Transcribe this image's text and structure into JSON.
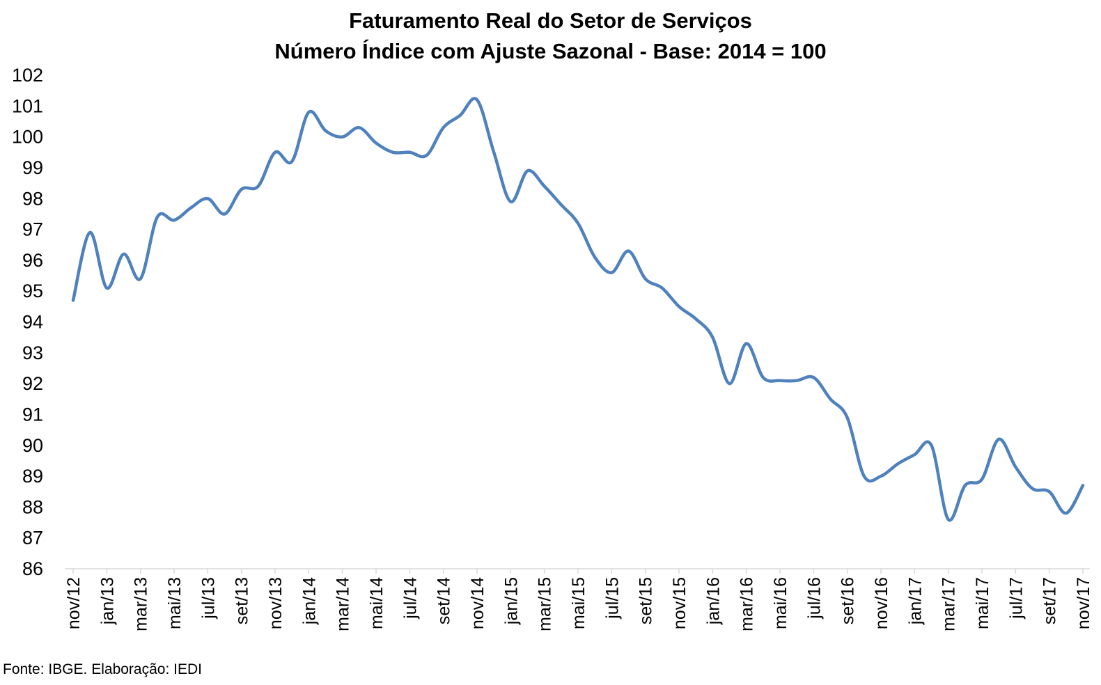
{
  "chart_data": {
    "type": "line",
    "title": "Faturamento Real do Setor de Serviços",
    "subtitle": "Número Índice com Ajuste Sazonal - Base: 2014 = 100",
    "xlabel": "",
    "ylabel": "",
    "ylim": [
      86,
      102
    ],
    "yticks": [
      86,
      87,
      88,
      89,
      90,
      91,
      92,
      93,
      94,
      95,
      96,
      97,
      98,
      99,
      100,
      101,
      102
    ],
    "grid": false,
    "legend": "none",
    "x": [
      "nov/12",
      "dez/12",
      "jan/13",
      "fev/13",
      "mar/13",
      "abr/13",
      "mai/13",
      "jun/13",
      "jul/13",
      "ago/13",
      "set/13",
      "out/13",
      "nov/13",
      "dez/13",
      "jan/14",
      "fev/14",
      "mar/14",
      "abr/14",
      "mai/14",
      "jun/14",
      "jul/14",
      "ago/14",
      "set/14",
      "out/14",
      "nov/14",
      "dez/14",
      "jan/15",
      "fev/15",
      "mar/15",
      "abr/15",
      "mai/15",
      "jun/15",
      "jul/15",
      "ago/15",
      "set/15",
      "out/15",
      "nov/15",
      "dez/15",
      "jan/16",
      "fev/16",
      "mar/16",
      "abr/16",
      "mai/16",
      "jun/16",
      "jul/16",
      "ago/16",
      "set/16",
      "out/16",
      "nov/16",
      "dez/16",
      "jan/17",
      "fev/17",
      "mar/17",
      "abr/17",
      "mai/17",
      "jun/17",
      "jul/17",
      "ago/17",
      "set/17",
      "out/17",
      "nov/17"
    ],
    "x_tick_labels": [
      "nov/12",
      "jan/13",
      "mar/13",
      "mai/13",
      "jul/13",
      "set/13",
      "nov/13",
      "jan/14",
      "mar/14",
      "mai/14",
      "jul/14",
      "set/14",
      "nov/14",
      "jan/15",
      "mar/15",
      "mai/15",
      "jul/15",
      "set/15",
      "nov/15",
      "jan/16",
      "mar/16",
      "mai/16",
      "jul/16",
      "set/16",
      "nov/16",
      "jan/17",
      "mar/17",
      "mai/17",
      "jul/17",
      "set/17",
      "nov/17"
    ],
    "series": [
      {
        "color": "#4F81BD",
        "values": [
          94.7,
          96.9,
          95.1,
          96.2,
          95.4,
          97.4,
          97.3,
          97.7,
          98.0,
          97.5,
          98.3,
          98.4,
          99.5,
          99.2,
          100.8,
          100.2,
          100.0,
          100.3,
          99.8,
          99.5,
          99.5,
          99.4,
          100.3,
          100.7,
          101.2,
          99.5,
          97.9,
          98.9,
          98.4,
          97.8,
          97.2,
          96.1,
          95.6,
          96.3,
          95.4,
          95.1,
          94.5,
          94.1,
          93.5,
          92.0,
          93.3,
          92.2,
          92.1,
          92.1,
          92.2,
          91.5,
          90.9,
          89.0,
          89.0,
          89.4,
          89.7,
          90.0,
          87.6,
          88.7,
          88.9,
          90.2,
          89.3,
          88.6,
          88.5,
          87.8,
          88.7
        ]
      }
    ]
  },
  "source_note": "Fonte: IBGE. Elaboração: IEDI"
}
